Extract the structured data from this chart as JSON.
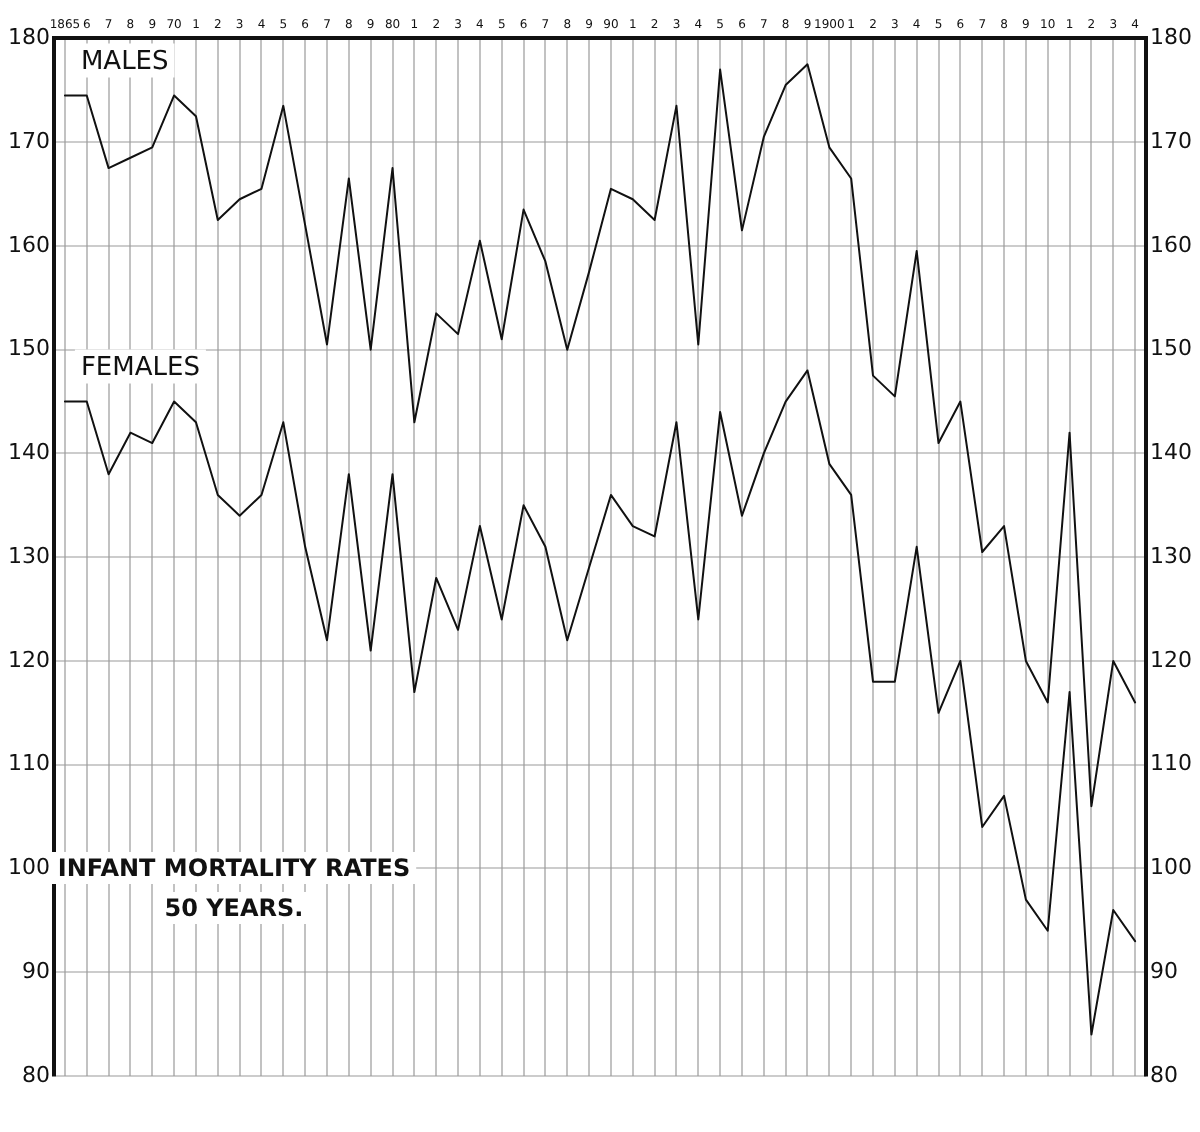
{
  "chart_data": {
    "type": "line",
    "title": "INFANT MORTALITY RATES",
    "subtitle": "50 YEARS.",
    "categories": [
      "1865",
      "6",
      "7",
      "8",
      "9",
      "70",
      "1",
      "2",
      "3",
      "4",
      "5",
      "6",
      "7",
      "8",
      "9",
      "80",
      "1",
      "2",
      "3",
      "4",
      "5",
      "6",
      "7",
      "8",
      "9",
      "90",
      "1",
      "2",
      "3",
      "4",
      "5",
      "6",
      "7",
      "8",
      "9",
      "1900",
      "1",
      "2",
      "3",
      "4",
      "5",
      "6",
      "7",
      "8",
      "9",
      "10",
      "1",
      "2",
      "3",
      "4"
    ],
    "series": [
      {
        "name": "MALES",
        "color": "#111111",
        "values": [
          174.5,
          174.5,
          167.5,
          168.5,
          169.5,
          174.5,
          172.5,
          162.5,
          164.5,
          165.5,
          173.5,
          162,
          150.5,
          166.5,
          150,
          167.5,
          143,
          153.5,
          151.5,
          160.5,
          151,
          163.5,
          158.5,
          150,
          157.5,
          165.5,
          164.5,
          162.5,
          173.5,
          150.5,
          177,
          161.5,
          170.5,
          175.5,
          177.5,
          169.5,
          166.5,
          147.5,
          145.5,
          159.5,
          141,
          145,
          130.5,
          133,
          120,
          116,
          142,
          106,
          120,
          116
        ]
      },
      {
        "name": "FEMALES",
        "color": "#111111",
        "values": [
          145,
          145,
          138,
          142,
          141,
          145,
          143,
          136,
          134,
          136,
          143,
          131,
          122,
          138,
          121,
          138,
          117,
          128,
          123,
          133,
          124,
          135,
          131,
          122,
          129,
          136,
          133,
          132,
          143,
          124,
          144,
          134,
          140,
          145,
          148,
          139,
          136,
          118,
          118,
          131,
          115,
          120,
          104,
          107,
          97,
          94,
          117,
          84,
          96,
          93
        ]
      }
    ],
    "ylim": [
      80,
      180
    ],
    "yticks": [
      80,
      90,
      100,
      110,
      120,
      130,
      140,
      150,
      160,
      170,
      180
    ],
    "y2lim": [
      80,
      180
    ],
    "y2ticks": [
      80,
      90,
      100,
      110,
      120,
      130,
      140,
      150,
      160,
      170,
      180
    ],
    "grid": true,
    "legend": false,
    "marker": "none",
    "line_style": "solid"
  }
}
